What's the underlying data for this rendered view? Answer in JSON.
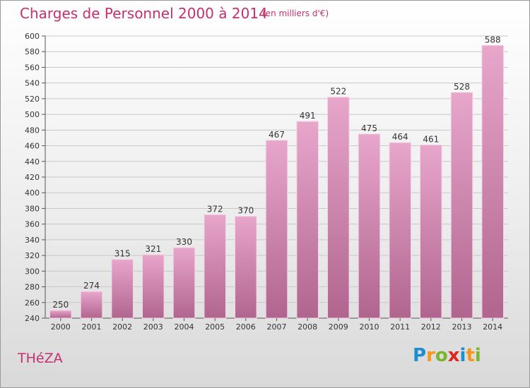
{
  "title": "Charges de Personnel 2000 à 2014",
  "subtitle": "(en milliers d'€)",
  "commune": "THéZA",
  "logo": {
    "text": "Proxiti",
    "letters": [
      "P",
      "r",
      "o",
      "x",
      "i",
      "t",
      "i"
    ],
    "colors": [
      "#1c8fd1",
      "#f5961d",
      "#7bb52e",
      "#e2231a",
      "#1c8fd1",
      "#f5961d",
      "#7bb52e"
    ]
  },
  "colors": {
    "title": "#c4306e",
    "bar_top": "#e8a6cb",
    "bar_bottom": "#b0658f",
    "axis_text": "#333333"
  },
  "chart_data": {
    "type": "bar",
    "categories": [
      "2000",
      "2001",
      "2002",
      "2003",
      "2004",
      "2005",
      "2006",
      "2007",
      "2008",
      "2009",
      "2010",
      "2011",
      "2012",
      "2013",
      "2014"
    ],
    "values": [
      250,
      274,
      315,
      321,
      330,
      372,
      370,
      467,
      491,
      522,
      475,
      464,
      461,
      528,
      588
    ],
    "ylim": [
      240,
      600
    ],
    "ytick_step": 20,
    "xlabel": "",
    "ylabel": "",
    "grid": true
  }
}
